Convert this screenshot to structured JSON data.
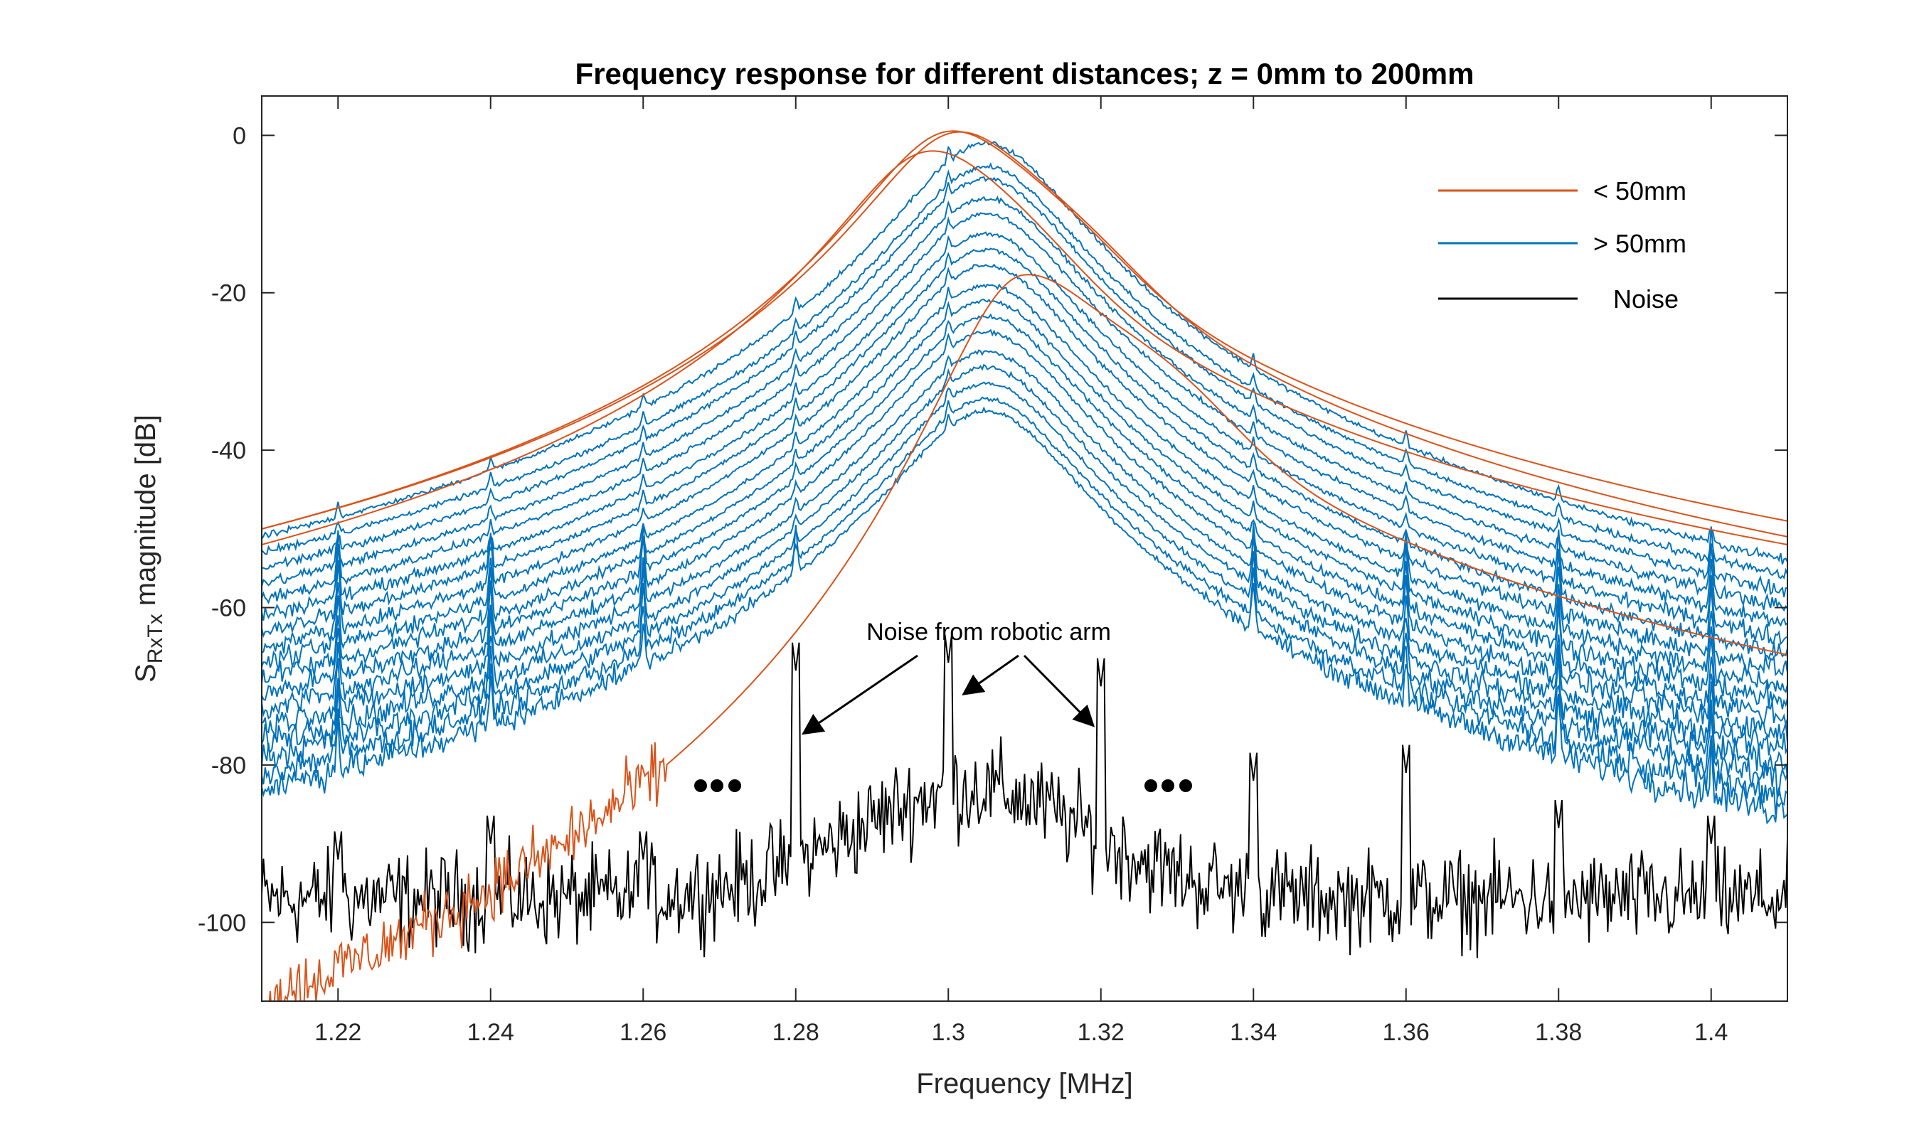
{
  "chart_data": {
    "type": "line",
    "title": "Frequency response for different distances; z = 0mm to 200mm",
    "xlabel": "Frequency [MHz]",
    "ylabel_main": "S",
    "ylabel_sub": "RxTx",
    "ylabel_rest": " magnitude [dB]",
    "xlim": [
      1.21,
      1.41
    ],
    "ylim": [
      -110,
      5
    ],
    "xticks": [
      1.22,
      1.24,
      1.26,
      1.28,
      1.3,
      1.32,
      1.34,
      1.36,
      1.38,
      1.4
    ],
    "xtick_labels": [
      "1.22",
      "1.24",
      "1.26",
      "1.28",
      "1.3",
      "1.32",
      "1.34",
      "1.36",
      "1.38",
      "1.4"
    ],
    "yticks": [
      0,
      -20,
      -40,
      -60,
      -80,
      -100
    ],
    "ytick_labels": [
      "0",
      "-20",
      "-40",
      "-60",
      "-80",
      "-100"
    ],
    "legend": [
      {
        "label": "< 50mm",
        "color": "#D95319"
      },
      {
        "label": "> 50mm",
        "color": "#0072BD"
      },
      {
        "label": "Noise",
        "color": "#000000"
      }
    ],
    "series_near": {
      "name": "< 50mm",
      "color": "#D95319",
      "curves": [
        {
          "peak_freq": 1.3,
          "peak_db": 0,
          "edge_low_db": -50,
          "edge_high_db": -49,
          "shoulder_freq": 1.316,
          "shoulder_db": -9
        },
        {
          "peak_freq": 1.301,
          "peak_db": 0,
          "edge_low_db": -50,
          "edge_high_db": -51,
          "shoulder_freq": 1.318,
          "shoulder_db": -10
        },
        {
          "peak_freq": 1.297,
          "peak_db": -3,
          "edge_low_db": -52,
          "edge_high_db": -52,
          "shoulder_freq": 1.31,
          "shoulder_db": -8
        },
        {
          "peak_freq": 1.31,
          "peak_db": -18,
          "edge_low_db": -110,
          "edge_high_db": -66,
          "shoulder_freq": 1.33,
          "shoulder_db": -26
        }
      ]
    },
    "series_far": {
      "name": "> 50mm",
      "color": "#0072BD",
      "center_freq": 1.305,
      "peak_db": [
        -1,
        -4,
        -5.5,
        -8,
        -10,
        -12.5,
        -14.5,
        -16.5,
        -19,
        -21,
        -23,
        -25,
        -27.5,
        -29.5,
        -31.5,
        -33.5,
        -35
      ],
      "edge_high_db": [
        -54,
        -56,
        -58,
        -60,
        -62,
        -64,
        -66,
        -68,
        -70,
        -72,
        -74,
        -76,
        -78,
        -80,
        -82,
        -84,
        -86
      ],
      "spike_freqs": [
        1.22,
        1.24,
        1.26,
        1.28,
        1.3,
        1.34,
        1.36,
        1.38,
        1.4
      ]
    },
    "series_noise": {
      "name": "Noise",
      "color": "#000000",
      "floor_db": -97,
      "hump_center": 1.303,
      "hump_db": -83,
      "spikes": [
        {
          "freq": 1.22,
          "db": -92
        },
        {
          "freq": 1.24,
          "db": -90
        },
        {
          "freq": 1.26,
          "db": -92
        },
        {
          "freq": 1.28,
          "db": -68
        },
        {
          "freq": 1.3,
          "db": -67
        },
        {
          "freq": 1.32,
          "db": -70
        },
        {
          "freq": 1.34,
          "db": -82
        },
        {
          "freq": 1.36,
          "db": -81
        },
        {
          "freq": 1.38,
          "db": -88
        },
        {
          "freq": 1.4,
          "db": -90
        }
      ]
    },
    "annotation": {
      "text": "Noise from robotic arm",
      "arrow_targets": [
        {
          "freq": 1.281,
          "db": -76
        },
        {
          "freq": 1.302,
          "db": -71
        },
        {
          "freq": 1.319,
          "db": -75
        }
      ],
      "ellipsis_left": "• • •",
      "ellipsis_right": "• • •"
    }
  }
}
